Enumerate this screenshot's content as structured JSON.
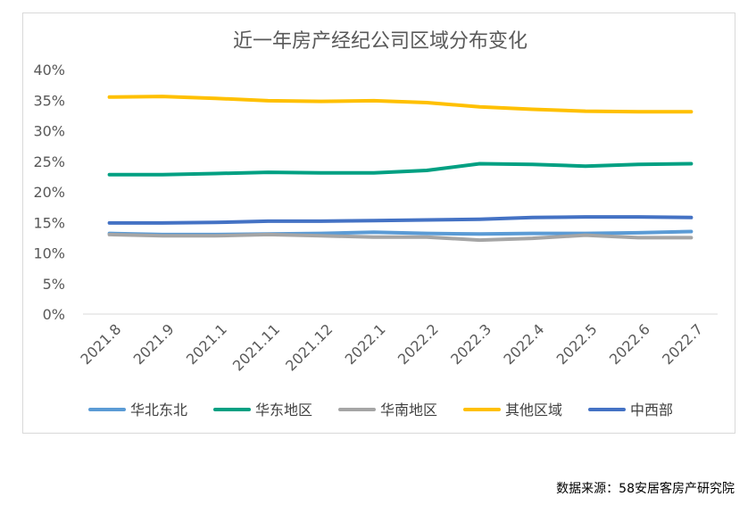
{
  "source_note": "数据来源：58安居客房产研究院",
  "chart_data": {
    "type": "line",
    "title": "近一年房产经纪公司区域分布变化",
    "xlabel": "",
    "ylabel": "",
    "ylim": [
      0,
      40
    ],
    "y_tick_values": [
      0,
      5,
      10,
      15,
      20,
      25,
      30,
      35,
      40
    ],
    "y_tick_labels": [
      "0%",
      "5%",
      "10%",
      "15%",
      "20%",
      "25%",
      "30%",
      "35%",
      "40%"
    ],
    "grid": "horizontal-baseline-only",
    "legend_position": "bottom",
    "categories": [
      "2021.8",
      "2021.9",
      "2021.1",
      "2021.11",
      "2021.12",
      "2022.1",
      "2022.2",
      "2022.3",
      "2022.4",
      "2022.5",
      "2022.6",
      "2022.7"
    ],
    "series": [
      {
        "name": "华北东北",
        "color": "#5b9bd5",
        "values": [
          13.2,
          13.0,
          13.0,
          13.1,
          13.2,
          13.4,
          13.2,
          13.1,
          13.2,
          13.2,
          13.3,
          13.5
        ]
      },
      {
        "name": "华东地区",
        "color": "#00a082",
        "values": [
          22.8,
          22.8,
          23.0,
          23.2,
          23.1,
          23.1,
          23.5,
          24.6,
          24.5,
          24.2,
          24.5,
          24.6
        ]
      },
      {
        "name": "华南地区",
        "color": "#a5a5a5",
        "values": [
          13.0,
          12.8,
          12.8,
          13.0,
          12.8,
          12.6,
          12.6,
          12.1,
          12.4,
          12.9,
          12.5,
          12.5
        ]
      },
      {
        "name": "其他区域",
        "color": "#ffc000",
        "values": [
          35.5,
          35.6,
          35.3,
          34.9,
          34.8,
          34.9,
          34.6,
          33.9,
          33.5,
          33.2,
          33.1,
          33.1
        ]
      },
      {
        "name": "中西部",
        "color": "#4472c4",
        "values": [
          14.9,
          14.9,
          15.0,
          15.2,
          15.2,
          15.3,
          15.4,
          15.5,
          15.8,
          15.9,
          15.9,
          15.8
        ]
      }
    ]
  }
}
